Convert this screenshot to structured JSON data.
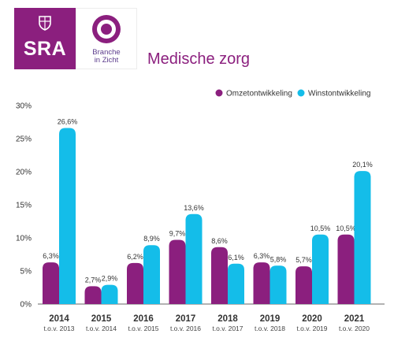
{
  "logos": {
    "sra_text": "SRA",
    "bic_text": "Branche\nin Zicht"
  },
  "colors": {
    "purple": "#8b1f7e",
    "cyan": "#14bde9",
    "title": "#8b1f7e"
  },
  "chart_data": {
    "type": "bar",
    "title": "Medische zorg",
    "categories": [
      "2014",
      "2015",
      "2016",
      "2017",
      "2018",
      "2019",
      "2020",
      "2021"
    ],
    "sublabels": [
      "t.o.v. 2013",
      "t.o.v. 2014",
      "t.o.v. 2015",
      "t.o.v. 2016",
      "t.o.v. 2017",
      "t.o.v. 2018",
      "t.o.v. 2019",
      "t.o.v. 2020"
    ],
    "series": [
      {
        "name": "Omzetontwikkeling",
        "color": "#8b1f7e",
        "values": [
          6.3,
          2.7,
          6.2,
          9.7,
          8.6,
          6.3,
          5.7,
          10.5
        ],
        "labels": [
          "6,3%",
          "2,7%",
          "6,2%",
          "9,7%",
          "8,6%",
          "6,3%",
          "5,7%",
          "10,5%"
        ]
      },
      {
        "name": "Winstontwikkeling",
        "color": "#14bde9",
        "values": [
          26.6,
          2.9,
          8.9,
          13.6,
          6.1,
          5.8,
          10.5,
          20.1
        ],
        "labels": [
          "26,6%",
          "2,9%",
          "8,9%",
          "13,6%",
          "6,1%",
          "5,8%",
          "10,5%",
          "20,1%"
        ]
      }
    ],
    "ylim": [
      0,
      30
    ],
    "yticks": [
      0,
      5,
      10,
      15,
      20,
      25,
      30
    ],
    "ytick_labels": [
      "0%",
      "5%",
      "10%",
      "15%",
      "20%",
      "25%",
      "30%"
    ],
    "grid": false,
    "legend": "top-right"
  }
}
